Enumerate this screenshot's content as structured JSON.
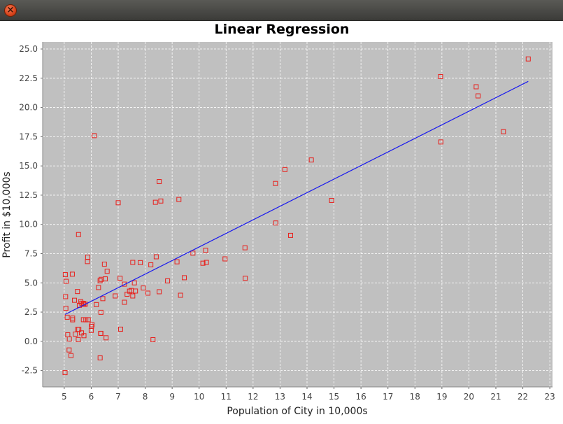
{
  "window": {
    "close_icon": "close-icon",
    "close_glyph": "×"
  },
  "chart_data": {
    "type": "scatter",
    "title": "Linear Regression",
    "xlabel": "Population of City in 10,000s",
    "ylabel": "Profit in $10,000s",
    "xlim": [
      4.2,
      23.1
    ],
    "ylim": [
      -3.9,
      25.6
    ],
    "xticks": [
      5,
      6,
      7,
      8,
      9,
      10,
      11,
      12,
      13,
      14,
      15,
      16,
      17,
      18,
      19,
      20,
      21,
      22,
      23
    ],
    "yticks": [
      -2.5,
      0.0,
      2.5,
      5.0,
      7.5,
      10.0,
      12.5,
      15.0,
      17.5,
      20.0,
      22.5,
      25.0
    ],
    "ytick_labels": [
      "-2.5",
      "0.0",
      "2.5",
      "5.0",
      "7.5",
      "10.0",
      "12.5",
      "15.0",
      "17.5",
      "20.0",
      "22.5",
      "25.0"
    ],
    "grid": true,
    "colors": {
      "plot_bg": "#c0c0c0",
      "points": "#e8201c",
      "line": "#1a1aee",
      "grid": "#ffffff"
    },
    "series": [
      {
        "kind": "points",
        "x": [
          6.11,
          5.53,
          8.52,
          7.0,
          5.86,
          8.38,
          7.48,
          8.58,
          6.49,
          5.05,
          5.71,
          14.16,
          5.73,
          8.41,
          5.64,
          5.38,
          6.37,
          5.13,
          6.43,
          7.07,
          6.19,
          20.27,
          5.49,
          6.33,
          5.56,
          18.95,
          12.83,
          10.96,
          13.18,
          22.2,
          5.25,
          6.59,
          9.25,
          5.89,
          8.21,
          7.93,
          8.1,
          5.61,
          12.84,
          6.35,
          5.41,
          6.89,
          11.71,
          5.78,
          7.82,
          7.09,
          5.07,
          5.8,
          11.7,
          5.54,
          7.54,
          5.31,
          7.42,
          7.6,
          6.03,
          6.33,
          6.36,
          6.27,
          5.65,
          9.31,
          9.45,
          8.83,
          5.18,
          21.28,
          14.91,
          18.96,
          7.23,
          5.3,
          10.24,
          5.5,
          20.34,
          10.14,
          7.33,
          6.01,
          7.23,
          5.03,
          6.55,
          7.54,
          5.04,
          10.27,
          5.11,
          5.73,
          5.19,
          6.36,
          9.77,
          6.52,
          8.52,
          9.18,
          6.0,
          5.52,
          5.06,
          5.71,
          7.64,
          5.87,
          5.31,
          8.29,
          13.39
        ],
        "y": [
          17.59,
          9.13,
          13.66,
          11.85,
          6.82,
          11.89,
          4.35,
          12.0,
          6.6,
          3.82,
          3.25,
          15.51,
          3.16,
          7.23,
          0.72,
          3.51,
          5.3,
          0.56,
          3.65,
          5.39,
          3.14,
          21.77,
          4.26,
          5.19,
          3.08,
          22.64,
          13.5,
          7.05,
          14.69,
          24.15,
          -1.22,
          5.99,
          12.13,
          1.85,
          6.54,
          4.56,
          4.12,
          3.39,
          10.12,
          0.68,
          0.62,
          3.88,
          5.39,
          3.18,
          6.73,
          1.04,
          5.13,
          1.84,
          8.0,
          1.02,
          6.75,
          1.84,
          4.29,
          5.0,
          1.42,
          -1.42,
          2.48,
          4.6,
          3.26,
          3.94,
          5.44,
          5.17,
          -0.74,
          17.93,
          12.05,
          17.05,
          4.89,
          5.74,
          7.78,
          1.02,
          20.99,
          6.68,
          4.03,
          1.28,
          3.34,
          -2.68,
          0.3,
          3.88,
          5.7,
          6.75,
          2.06,
          0.48,
          0.2,
          0.68,
          7.54,
          5.34,
          4.24,
          6.8,
          0.93,
          0.15,
          2.82,
          1.85,
          4.3,
          7.2,
          1.99,
          0.14,
          9.06
        ]
      },
      {
        "kind": "line",
        "x": [
          5.03,
          22.2
        ],
        "y": [
          2.3,
          22.23
        ]
      }
    ]
  }
}
